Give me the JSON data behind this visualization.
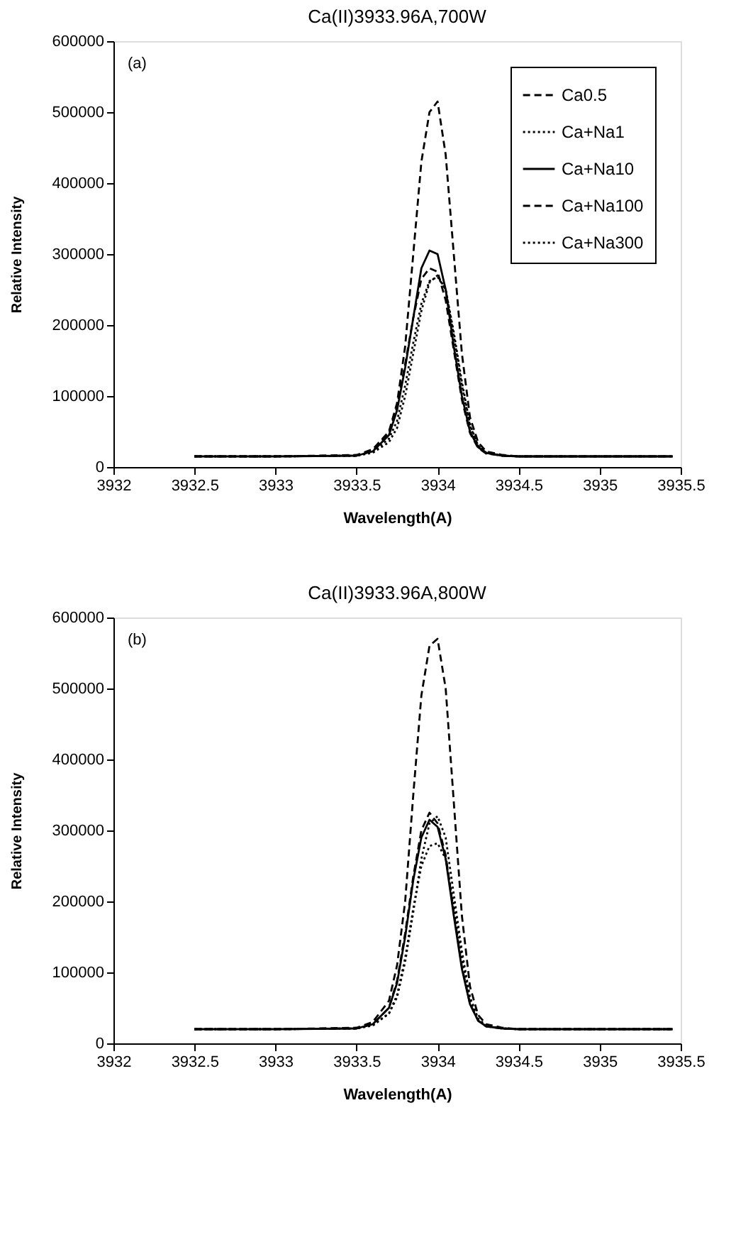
{
  "chart_data": [
    {
      "type": "line",
      "title": "Ca(II)3933.96A,700W",
      "xlabel": "Wavelength(A)",
      "ylabel": "Relative Intensity",
      "annotations": [
        "(a)"
      ],
      "xlim": [
        3932,
        3935.5
      ],
      "xticks": [
        3932,
        3932.5,
        3933,
        3933.5,
        3934,
        3934.5,
        3935,
        3935.5
      ],
      "ylim": [
        0,
        600000
      ],
      "yticks": [
        0,
        100000,
        200000,
        300000,
        400000,
        500000,
        600000
      ],
      "grid": false,
      "legend": "top right",
      "x": [
        3932.5,
        3933.0,
        3933.5,
        3933.6,
        3933.7,
        3933.75,
        3933.8,
        3933.85,
        3933.9,
        3933.95,
        3934.0,
        3934.05,
        3934.1,
        3934.15,
        3934.2,
        3934.25,
        3934.3,
        3934.4,
        3934.5,
        3935.0,
        3935.45
      ],
      "series": [
        {
          "name": "Ca0.5",
          "color": "#000000",
          "line_style": "dashed",
          "values": [
            15000,
            15000,
            17000,
            25000,
            50000,
            90000,
            170000,
            300000,
            430000,
            500000,
            515000,
            440000,
            300000,
            160000,
            70000,
            35000,
            22000,
            17000,
            15000,
            15000,
            15000
          ]
        },
        {
          "name": "Ca+Na1",
          "color": "#000000",
          "line_style": "dotted",
          "values": [
            15000,
            15000,
            16000,
            20000,
            35000,
            55000,
            100000,
            160000,
            220000,
            260000,
            270000,
            250000,
            190000,
            120000,
            60000,
            30000,
            20000,
            16000,
            15000,
            15000,
            15000
          ]
        },
        {
          "name": "Ca+Na10",
          "color": "#000000",
          "line_style": "solid",
          "values": [
            15000,
            15000,
            16000,
            22000,
            45000,
            80000,
            140000,
            210000,
            280000,
            305000,
            300000,
            250000,
            170000,
            100000,
            50000,
            28000,
            20000,
            16000,
            15000,
            15000,
            15000
          ]
        },
        {
          "name": "Ca+Na100",
          "color": "#000000",
          "line_style": "dashed",
          "values": [
            15000,
            15000,
            16000,
            23000,
            48000,
            85000,
            145000,
            210000,
            265000,
            280000,
            275000,
            235000,
            165000,
            95000,
            48000,
            27000,
            19000,
            16000,
            15000,
            15000,
            15000
          ]
        },
        {
          "name": "Ca+Na300",
          "color": "#000000",
          "line_style": "dotted",
          "values": [
            15000,
            15000,
            16000,
            21000,
            40000,
            65000,
            115000,
            175000,
            230000,
            262000,
            268000,
            250000,
            185000,
            115000,
            58000,
            30000,
            20000,
            16000,
            15000,
            15000,
            15000
          ]
        }
      ]
    },
    {
      "type": "line",
      "title": "Ca(II)3933.96A,800W",
      "xlabel": "Wavelength(A)",
      "ylabel": "Relative Intensity",
      "annotations": [
        "(b)"
      ],
      "xlim": [
        3932,
        3935.5
      ],
      "xticks": [
        3932,
        3932.5,
        3933,
        3933.5,
        3934,
        3934.5,
        3935,
        3935.5
      ],
      "ylim": [
        0,
        600000
      ],
      "yticks": [
        0,
        100000,
        200000,
        300000,
        400000,
        500000,
        600000
      ],
      "grid": false,
      "legend": "top right",
      "x": [
        3932.5,
        3933.0,
        3933.5,
        3933.6,
        3933.7,
        3933.75,
        3933.8,
        3933.85,
        3933.9,
        3933.95,
        3934.0,
        3934.05,
        3934.1,
        3934.15,
        3934.2,
        3934.25,
        3934.3,
        3934.4,
        3934.5,
        3935.0,
        3935.45
      ],
      "series": [
        {
          "name": "Ca0.5",
          "color": "#000000",
          "line_style": "dashed",
          "values": [
            20000,
            20000,
            22000,
            30000,
            60000,
            110000,
            200000,
            350000,
            490000,
            560000,
            570000,
            500000,
            340000,
            180000,
            80000,
            40000,
            27000,
            22000,
            20000,
            20000,
            20000
          ]
        },
        {
          "name": "Ca+Na1",
          "color": "#000000",
          "line_style": "dotted",
          "values": [
            20000,
            20000,
            21000,
            26000,
            42000,
            65000,
            115000,
            185000,
            260000,
            310000,
            320000,
            290000,
            210000,
            130000,
            65000,
            35000,
            25000,
            21000,
            20000,
            20000,
            20000
          ]
        },
        {
          "name": "Ca+Na10",
          "color": "#000000",
          "line_style": "solid",
          "values": [
            20000,
            20000,
            21000,
            27000,
            50000,
            85000,
            150000,
            230000,
            290000,
            315000,
            305000,
            260000,
            180000,
            105000,
            55000,
            32000,
            24000,
            21000,
            20000,
            20000,
            20000
          ]
        },
        {
          "name": "Ca+Na100",
          "color": "#000000",
          "line_style": "dashed",
          "values": [
            20000,
            20000,
            21000,
            27000,
            50000,
            88000,
            155000,
            235000,
            300000,
            325000,
            310000,
            265000,
            185000,
            108000,
            56000,
            32000,
            24000,
            21000,
            20000,
            20000,
            20000
          ]
        },
        {
          "name": "Ca+Na300",
          "color": "#000000",
          "line_style": "dotted",
          "values": [
            20000,
            20000,
            21000,
            25000,
            42000,
            68000,
            120000,
            190000,
            250000,
            278000,
            282000,
            260000,
            195000,
            120000,
            62000,
            33000,
            24000,
            21000,
            20000,
            20000,
            20000
          ]
        }
      ]
    }
  ]
}
